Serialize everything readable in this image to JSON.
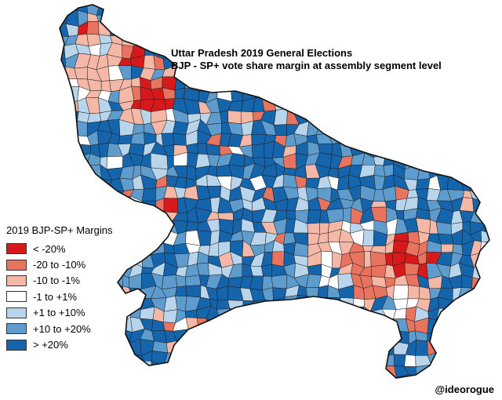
{
  "title": {
    "line1": "Uttar Pradesh 2019 General Elections",
    "line2": "BJP - SP+ vote share margin at assembly segment level"
  },
  "legend": {
    "title": "2019 BJP-SP+ Margins",
    "items": [
      {
        "label": "< -20%",
        "color": "#d7191c"
      },
      {
        "label": "-20 to -10%",
        "color": "#e8735f"
      },
      {
        "label": "-10 to -1%",
        "color": "#f6b8a6"
      },
      {
        "label": "-1 to +1%",
        "color": "#ffffff"
      },
      {
        "label": "+1 to +10%",
        "color": "#b8d5ec"
      },
      {
        "label": "+10 to +20%",
        "color": "#5e9ccd"
      },
      {
        "label": "> +20%",
        "color": "#1565ad"
      }
    ]
  },
  "credit": "@ideorogue"
}
